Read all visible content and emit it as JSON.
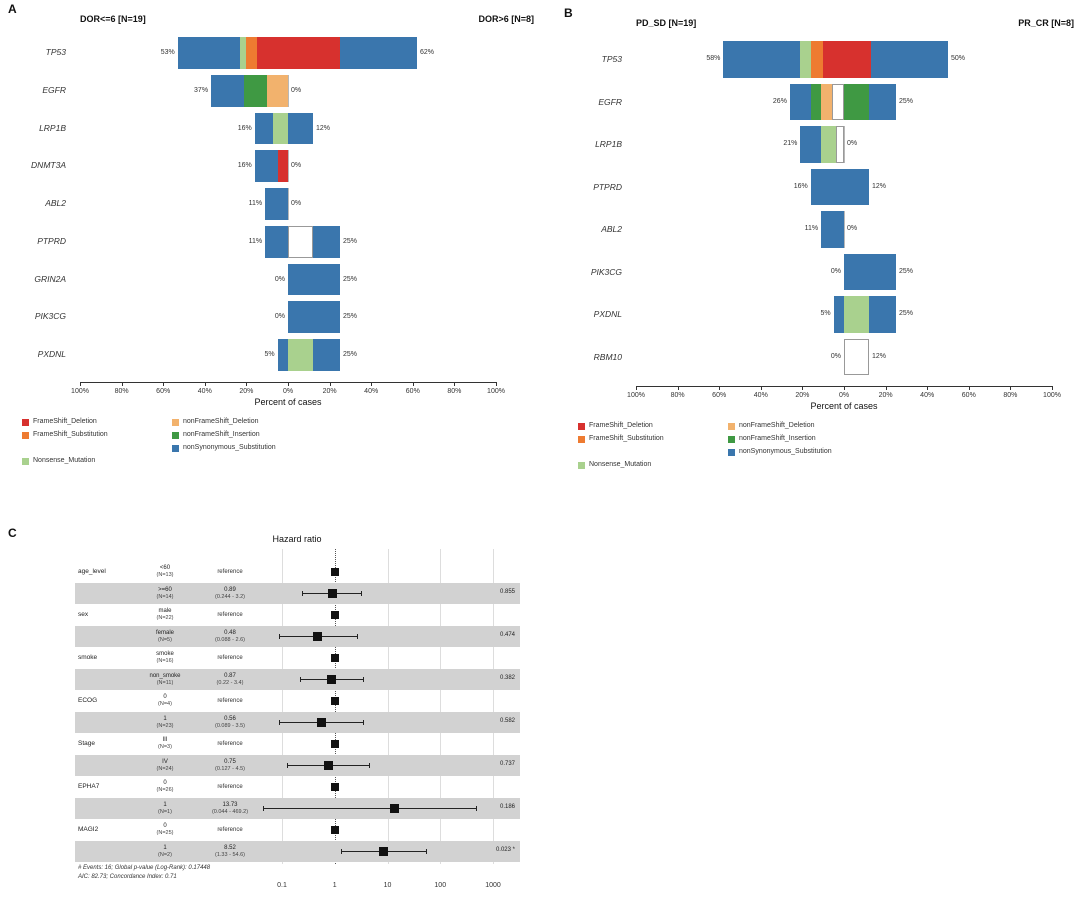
{
  "panel_labels": {
    "a": "A",
    "b": "B",
    "c": "C"
  },
  "colors": {
    "FrameShift_Deletion": "#d7312e",
    "FrameShift_Substitution": "#ee7b31",
    "nonFrameShift_Deletion": "#f2b26d",
    "nonFrameShift_Insertion": "#3f9943",
    "nonSynonymous_Substitution": "#3a76ad",
    "Nonsense_Mutation": "#a9d18e",
    "Unknown": "#ffffff"
  },
  "legend": {
    "columns": [
      [
        "FrameShift_Deletion",
        "FrameShift_Substitution",
        "",
        "Nonsense_Mutation"
      ],
      [
        "nonFrameShift_Deletion",
        "nonFrameShift_Insertion",
        "nonSynonymous_Substitution",
        ""
      ]
    ]
  },
  "chart_data": [
    {
      "type": "bar",
      "subtype": "tornado",
      "panel": "A",
      "left_title": "DOR<=6 [N=19]",
      "right_title": "DOR>6 [N=8]",
      "xlabel": "Percent of cases",
      "axis_tick_percents": [
        100,
        80,
        60,
        40,
        20,
        0,
        20,
        40,
        60,
        80,
        100
      ],
      "xlim_each_side": 100,
      "rows": [
        {
          "gene": "TP53",
          "left_label": "53%",
          "right_label": "62%",
          "left_segments": [
            {
              "type": "nonSynonymous_Substitution",
              "value": 30
            },
            {
              "type": "Nonsense_Mutation",
              "value": 3
            },
            {
              "type": "FrameShift_Substitution",
              "value": 5
            },
            {
              "type": "FrameShift_Deletion",
              "value": 15
            }
          ],
          "right_segments": [
            {
              "type": "FrameShift_Deletion",
              "value": 25
            },
            {
              "type": "nonSynonymous_Substitution",
              "value": 37
            }
          ]
        },
        {
          "gene": "EGFR",
          "left_label": "37%",
          "right_label": "0%",
          "left_segments": [
            {
              "type": "nonSynonymous_Substitution",
              "value": 16
            },
            {
              "type": "nonFrameShift_Insertion",
              "value": 11
            },
            {
              "type": "nonFrameShift_Deletion",
              "value": 10
            }
          ],
          "right_segments": []
        },
        {
          "gene": "LRP1B",
          "left_label": "16%",
          "right_label": "12%",
          "left_segments": [
            {
              "type": "nonSynonymous_Substitution",
              "value": 9
            },
            {
              "type": "Nonsense_Mutation",
              "value": 7
            }
          ],
          "right_segments": [
            {
              "type": "nonSynonymous_Substitution",
              "value": 12
            }
          ]
        },
        {
          "gene": "DNMT3A",
          "left_label": "16%",
          "right_label": "0%",
          "left_segments": [
            {
              "type": "nonSynonymous_Substitution",
              "value": 11
            },
            {
              "type": "FrameShift_Deletion",
              "value": 5
            }
          ],
          "right_segments": []
        },
        {
          "gene": "ABL2",
          "left_label": "11%",
          "right_label": "0%",
          "left_segments": [
            {
              "type": "nonSynonymous_Substitution",
              "value": 11
            }
          ],
          "right_segments": []
        },
        {
          "gene": "PTPRD",
          "left_label": "11%",
          "right_label": "25%",
          "left_segments": [
            {
              "type": "nonSynonymous_Substitution",
              "value": 11
            }
          ],
          "right_segments": [
            {
              "type": "Unknown",
              "value": 12
            },
            {
              "type": "nonSynonymous_Substitution",
              "value": 13
            }
          ]
        },
        {
          "gene": "GRIN2A",
          "left_label": "0%",
          "right_label": "25%",
          "left_segments": [],
          "right_segments": [
            {
              "type": "nonSynonymous_Substitution",
              "value": 25
            }
          ]
        },
        {
          "gene": "PIK3CG",
          "left_label": "0%",
          "right_label": "25%",
          "left_segments": [],
          "right_segments": [
            {
              "type": "nonSynonymous_Substitution",
              "value": 25
            }
          ]
        },
        {
          "gene": "PXDNL",
          "left_label": "5%",
          "right_label": "25%",
          "left_segments": [
            {
              "type": "nonSynonymous_Substitution",
              "value": 5
            }
          ],
          "right_segments": [
            {
              "type": "Nonsense_Mutation",
              "value": 12
            },
            {
              "type": "nonSynonymous_Substitution",
              "value": 13
            }
          ]
        }
      ]
    },
    {
      "type": "bar",
      "subtype": "tornado",
      "panel": "B",
      "left_title": "PD_SD [N=19]",
      "right_title": "PR_CR [N=8]",
      "xlabel": "Percent of cases",
      "axis_tick_percents": [
        100,
        80,
        60,
        40,
        20,
        0,
        20,
        40,
        60,
        80,
        100
      ],
      "xlim_each_side": 100,
      "rows": [
        {
          "gene": "TP53",
          "left_label": "58%",
          "right_label": "50%",
          "left_segments": [
            {
              "type": "nonSynonymous_Substitution",
              "value": 37
            },
            {
              "type": "Nonsense_Mutation",
              "value": 5
            },
            {
              "type": "FrameShift_Substitution",
              "value": 6
            },
            {
              "type": "FrameShift_Deletion",
              "value": 10
            }
          ],
          "right_segments": [
            {
              "type": "FrameShift_Deletion",
              "value": 13
            },
            {
              "type": "nonSynonymous_Substitution",
              "value": 37
            }
          ]
        },
        {
          "gene": "EGFR",
          "left_label": "26%",
          "right_label": "25%",
          "left_segments": [
            {
              "type": "nonSynonymous_Substitution",
              "value": 10
            },
            {
              "type": "nonFrameShift_Insertion",
              "value": 5
            },
            {
              "type": "nonFrameShift_Deletion",
              "value": 5
            },
            {
              "type": "Unknown",
              "value": 6
            }
          ],
          "right_segments": [
            {
              "type": "nonFrameShift_Insertion",
              "value": 12
            },
            {
              "type": "nonSynonymous_Substitution",
              "value": 13
            }
          ]
        },
        {
          "gene": "LRP1B",
          "left_label": "21%",
          "right_label": "0%",
          "left_segments": [
            {
              "type": "nonSynonymous_Substitution",
              "value": 10
            },
            {
              "type": "Nonsense_Mutation",
              "value": 7
            },
            {
              "type": "Unknown",
              "value": 4
            }
          ],
          "right_segments": []
        },
        {
          "gene": "PTPRD",
          "left_label": "16%",
          "right_label": "12%",
          "left_segments": [
            {
              "type": "nonSynonymous_Substitution",
              "value": 16
            }
          ],
          "right_segments": [
            {
              "type": "nonSynonymous_Substitution",
              "value": 12
            }
          ]
        },
        {
          "gene": "ABL2",
          "left_label": "11%",
          "right_label": "0%",
          "left_segments": [
            {
              "type": "nonSynonymous_Substitution",
              "value": 11
            }
          ],
          "right_segments": []
        },
        {
          "gene": "PIK3CG",
          "left_label": "0%",
          "right_label": "25%",
          "left_segments": [],
          "right_segments": [
            {
              "type": "nonSynonymous_Substitution",
              "value": 25
            }
          ]
        },
        {
          "gene": "PXDNL",
          "left_label": "5%",
          "right_label": "25%",
          "left_segments": [
            {
              "type": "nonSynonymous_Substitution",
              "value": 5
            }
          ],
          "right_segments": [
            {
              "type": "Nonsense_Mutation",
              "value": 12
            },
            {
              "type": "nonSynonymous_Substitution",
              "value": 13
            }
          ]
        },
        {
          "gene": "RBM10",
          "left_label": "0%",
          "right_label": "12%",
          "left_segments": [],
          "right_segments": [
            {
              "type": "Unknown",
              "value": 12
            }
          ]
        }
      ]
    },
    {
      "type": "forest",
      "panel": "C",
      "title": "Hazard ratio",
      "reference_label": "reference",
      "axis_ticks": [
        "0.1",
        "1",
        "10",
        "100",
        "1000"
      ],
      "axis_values": [
        0.1,
        1,
        10,
        100,
        1000
      ],
      "footnote_line1": "# Events: 16; Global p-value (Log-Rank): 0.17448",
      "footnote_line2": "AIC: 82.73; Concordance Index: 0.71",
      "rows": [
        {
          "variable": "age_level",
          "level": "<60",
          "n": "(N=13)",
          "reference": true
        },
        {
          "level": ">=60",
          "n": "(N=14)",
          "estimate": "0.89",
          "ci_text": "(0.244 - 3.2)",
          "hr": 0.89,
          "lo": 0.244,
          "hi": 3.2,
          "p": "0.855"
        },
        {
          "variable": "sex",
          "level": "male",
          "n": "(N=22)",
          "reference": true
        },
        {
          "level": "female",
          "n": "(N=5)",
          "estimate": "0.48",
          "ci_text": "(0.088 - 2.6)",
          "hr": 0.48,
          "lo": 0.088,
          "hi": 2.6,
          "p": "0.474"
        },
        {
          "variable": "smoke",
          "level": "smoke",
          "n": "(N=16)",
          "reference": true
        },
        {
          "level": "non_smoke",
          "n": "(N=11)",
          "estimate": "0.87",
          "ci_text": "(0.22 - 3.4)",
          "hr": 0.87,
          "lo": 0.22,
          "hi": 3.4,
          "p": "0.382"
        },
        {
          "variable": "ECOG",
          "level": "0",
          "n": "(N=4)",
          "reference": true
        },
        {
          "level": "1",
          "n": "(N=23)",
          "estimate": "0.56",
          "ci_text": "(0.089 - 3.5)",
          "hr": 0.56,
          "lo": 0.089,
          "hi": 3.5,
          "p": "0.582"
        },
        {
          "variable": "Stage",
          "level": "III",
          "n": "(N=3)",
          "reference": true
        },
        {
          "level": "IV",
          "n": "(N=24)",
          "estimate": "0.75",
          "ci_text": "(0.127 - 4.5)",
          "hr": 0.75,
          "lo": 0.127,
          "hi": 4.5,
          "p": "0.737"
        },
        {
          "variable": "EPHA7",
          "level": "0",
          "n": "(N=26)",
          "reference": true
        },
        {
          "level": "1",
          "n": "(N=1)",
          "estimate": "13.73",
          "ci_text": "(0.044 - 469.2)",
          "hr": 13.73,
          "lo": 0.044,
          "hi": 469.2,
          "p": "0.186"
        },
        {
          "variable": "MAGI2",
          "level": "0",
          "n": "(N=25)",
          "reference": true
        },
        {
          "level": "1",
          "n": "(N=2)",
          "estimate": "8.52",
          "ci_text": "(1.33 - 54.6)",
          "hr": 8.52,
          "lo": 1.33,
          "hi": 54.6,
          "p": "0.023 *"
        }
      ]
    }
  ]
}
